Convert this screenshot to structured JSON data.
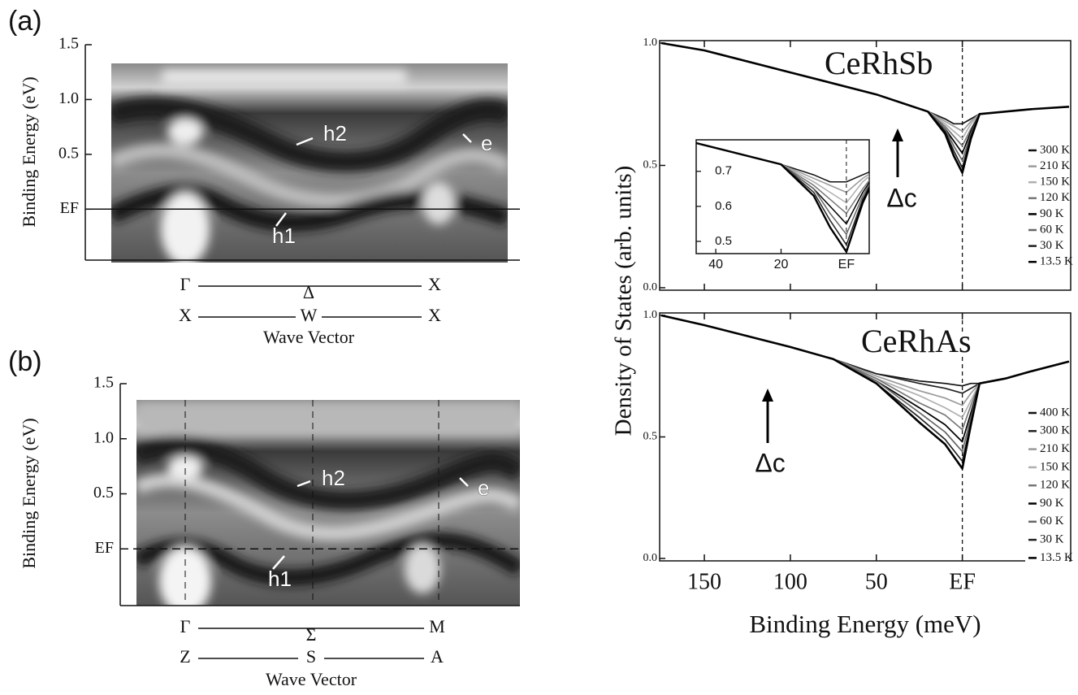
{
  "chart_data": [
    {
      "type": "image",
      "label": "(a)",
      "ylabel": "Binding Energy (eV)",
      "xlabel": "Wave Vector",
      "ylim": [
        -0.45,
        1.5
      ],
      "yticks": [
        {
          "value": 0,
          "label": "EF"
        },
        0.5,
        {
          "value": 1,
          "label": "1.0"
        },
        1.5
      ],
      "kpath": [
        [
          "Γ",
          "Δ",
          "X"
        ],
        [
          "X",
          "W",
          "X"
        ]
      ],
      "annotations": [
        "h2",
        "e",
        "h1"
      ]
    },
    {
      "type": "image",
      "label": "(b)",
      "ylabel": "Binding Energy (eV)",
      "xlabel": "Wave Vector",
      "ylim": [
        -0.5,
        1.5
      ],
      "yticks": [
        {
          "value": 0,
          "label": "EF"
        },
        0.5,
        {
          "value": 1,
          "label": "1.0"
        },
        1.5
      ],
      "kpath": [
        [
          "Γ",
          "Σ",
          "M"
        ],
        [
          "Z",
          "S",
          "A"
        ]
      ],
      "annotations": [
        "h2",
        "e",
        "h1"
      ]
    },
    {
      "type": "line",
      "title": "CeRhSb",
      "annotation": "Δc",
      "ylabel": "Density of States (arb. units)",
      "xlim": [
        176,
        -63
      ],
      "ylim": [
        -0.01,
        1.01
      ],
      "xticks": [
        150,
        100,
        50,
        {
          "value": 0,
          "label": "EF"
        }
      ],
      "yticks": [
        {
          "value": 0,
          "label": "0.0"
        },
        0.5,
        {
          "value": 1,
          "label": "1.0"
        }
      ],
      "x": [
        175,
        150,
        100,
        50,
        20,
        10,
        5,
        0,
        -5,
        -10,
        -25,
        -40,
        -62
      ],
      "series": [
        {
          "name": "300 K",
          "color": "#111111",
          "values": [
            1.0,
            0.97,
            0.88,
            0.79,
            0.72,
            0.69,
            0.67,
            0.67,
            0.69,
            0.71,
            0.72,
            0.73,
            0.74
          ]
        },
        {
          "name": "210 K",
          "color": "#9a9a9a",
          "values": [
            1.0,
            0.97,
            0.88,
            0.79,
            0.72,
            0.68,
            0.66,
            0.64,
            0.68,
            0.71,
            0.72,
            0.73,
            0.74
          ]
        },
        {
          "name": "150 K",
          "color": "#b0b0b0",
          "values": [
            1.0,
            0.97,
            0.88,
            0.79,
            0.72,
            0.67,
            0.64,
            0.61,
            0.67,
            0.71,
            0.72,
            0.73,
            0.74
          ]
        },
        {
          "name": "120 K",
          "color": "#777777",
          "values": [
            1.0,
            0.97,
            0.88,
            0.79,
            0.72,
            0.66,
            0.62,
            0.58,
            0.65,
            0.71,
            0.72,
            0.73,
            0.74
          ]
        },
        {
          "name": "90 K",
          "color": "#000000",
          "values": [
            1.0,
            0.97,
            0.88,
            0.79,
            0.72,
            0.65,
            0.6,
            0.55,
            0.64,
            0.71,
            0.72,
            0.73,
            0.74
          ]
        },
        {
          "name": "60 K",
          "color": "#666666",
          "values": [
            1.0,
            0.97,
            0.88,
            0.79,
            0.72,
            0.65,
            0.58,
            0.52,
            0.63,
            0.71,
            0.72,
            0.73,
            0.74
          ]
        },
        {
          "name": "30 K",
          "color": "#222222",
          "values": [
            1.0,
            0.97,
            0.88,
            0.79,
            0.72,
            0.64,
            0.56,
            0.49,
            0.62,
            0.71,
            0.72,
            0.73,
            0.74
          ]
        },
        {
          "name": "13.5 K",
          "color": "#000000",
          "values": [
            1.0,
            0.97,
            0.88,
            0.79,
            0.72,
            0.63,
            0.54,
            0.47,
            0.61,
            0.71,
            0.72,
            0.73,
            0.74
          ]
        }
      ],
      "inset": {
        "xlim": [
          46,
          -7
        ],
        "ylim": [
          0.465,
          0.79
        ],
        "xticks": [
          40,
          20,
          {
            "value": 0,
            "label": "EF"
          }
        ],
        "yticks": [
          0.5,
          0.6,
          0.7
        ]
      }
    },
    {
      "type": "line",
      "title": "CeRhAs",
      "annotation": "Δc",
      "xlabel": "Binding Energy (meV)",
      "xlim": [
        176,
        -63
      ],
      "ylim": [
        -0.01,
        1.01
      ],
      "xticks": [
        150,
        100,
        50,
        {
          "value": 0,
          "label": "EF"
        }
      ],
      "yticks": [
        {
          "value": 0,
          "label": "0.0"
        },
        0.5,
        {
          "value": 1,
          "label": "1.0"
        }
      ],
      "x": [
        175,
        150,
        100,
        75,
        50,
        25,
        10,
        0,
        -5,
        -10,
        -25,
        -40,
        -62
      ],
      "series": [
        {
          "name": "400 K",
          "color": "#111111",
          "values": [
            1.0,
            0.96,
            0.87,
            0.82,
            0.76,
            0.73,
            0.72,
            0.71,
            0.72,
            0.72,
            0.74,
            0.77,
            0.81
          ]
        },
        {
          "name": "300 K",
          "color": "#222222",
          "values": [
            1.0,
            0.96,
            0.87,
            0.82,
            0.76,
            0.72,
            0.7,
            0.68,
            0.7,
            0.72,
            0.74,
            0.77,
            0.81
          ]
        },
        {
          "name": "210 K",
          "color": "#9a9a9a",
          "values": [
            1.0,
            0.96,
            0.87,
            0.82,
            0.75,
            0.69,
            0.66,
            0.63,
            0.68,
            0.72,
            0.74,
            0.77,
            0.81
          ]
        },
        {
          "name": "150 K",
          "color": "#b0b0b0",
          "values": [
            1.0,
            0.96,
            0.87,
            0.82,
            0.74,
            0.67,
            0.62,
            0.58,
            0.65,
            0.72,
            0.74,
            0.77,
            0.81
          ]
        },
        {
          "name": "120 K",
          "color": "#777777",
          "values": [
            1.0,
            0.96,
            0.87,
            0.82,
            0.74,
            0.64,
            0.59,
            0.53,
            0.63,
            0.72,
            0.74,
            0.77,
            0.81
          ]
        },
        {
          "name": "90 K",
          "color": "#000000",
          "values": [
            1.0,
            0.96,
            0.87,
            0.82,
            0.73,
            0.62,
            0.55,
            0.48,
            0.6,
            0.72,
            0.74,
            0.77,
            0.81
          ]
        },
        {
          "name": "60 K",
          "color": "#666666",
          "values": [
            1.0,
            0.96,
            0.87,
            0.82,
            0.73,
            0.6,
            0.52,
            0.44,
            0.58,
            0.72,
            0.74,
            0.77,
            0.81
          ]
        },
        {
          "name": "30 K",
          "color": "#222222",
          "values": [
            1.0,
            0.96,
            0.87,
            0.82,
            0.72,
            0.58,
            0.49,
            0.4,
            0.56,
            0.72,
            0.74,
            0.77,
            0.81
          ]
        },
        {
          "name": "13.5 K",
          "color": "#000000",
          "values": [
            1.0,
            0.96,
            0.87,
            0.82,
            0.72,
            0.56,
            0.47,
            0.37,
            0.55,
            0.72,
            0.74,
            0.77,
            0.81
          ]
        }
      ]
    }
  ]
}
